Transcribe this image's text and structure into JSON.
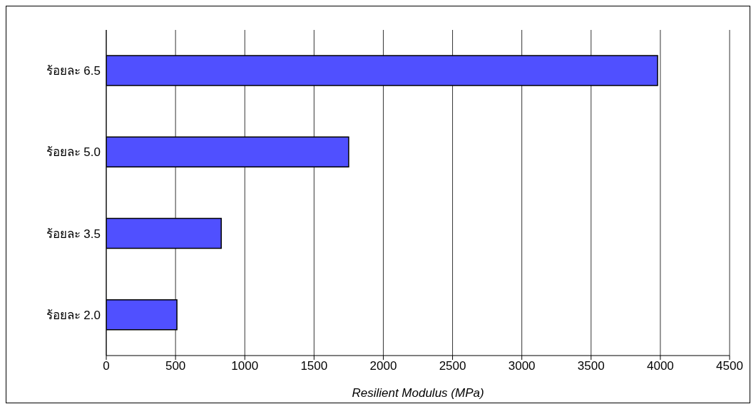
{
  "chart_data": {
    "type": "bar",
    "orientation": "horizontal",
    "categories": [
      "ร้อยละ 6.5",
      "ร้อยละ 5.0",
      "ร้อยละ 3.5",
      "ร้อยละ 2.0"
    ],
    "values": [
      3980,
      1750,
      830,
      510
    ],
    "color": "#5050ff",
    "xlabel": "Resilient Modulus (MPa)",
    "xlim": [
      0,
      4500
    ],
    "xticks": [
      0,
      500,
      1000,
      1500,
      2000,
      2500,
      3000,
      3500,
      4000,
      4500
    ],
    "grid": "x"
  }
}
